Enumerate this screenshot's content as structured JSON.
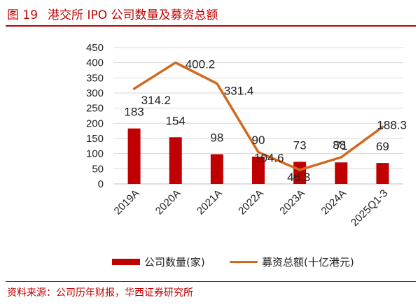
{
  "figure": {
    "number": "图 19",
    "title": "港交所 IPO 公司数量及募资总额"
  },
  "source": "资料来源：公司历年财报，华西证券研究所",
  "colors": {
    "bar": "#c00000",
    "line": "#d2691e",
    "title": "#c00000",
    "grid": "#d9d9d9"
  },
  "chart_data": {
    "type": "bar",
    "title": "港交所 IPO 公司数量及募资总额",
    "categories": [
      "2019A",
      "2020A",
      "2021A",
      "2022A",
      "2023A",
      "2024A",
      "2025Q1-3"
    ],
    "series": [
      {
        "name": "公司数量(家)",
        "type": "bar",
        "values": [
          183,
          154,
          98,
          90,
          73,
          71,
          69
        ]
      },
      {
        "name": "募资总额(十亿港元)",
        "type": "line",
        "values": [
          314.2,
          400.2,
          331.4,
          104.6,
          46.3,
          88,
          188.3
        ]
      }
    ],
    "y_ticks": [
      0,
      50,
      100,
      150,
      200,
      250,
      300,
      350,
      400,
      450
    ],
    "ylim": [
      0,
      450
    ],
    "grid": true,
    "legend": "bottom"
  }
}
